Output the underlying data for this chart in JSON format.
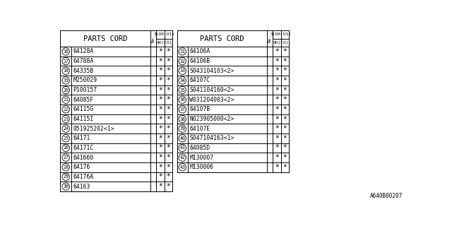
{
  "footer": "A640B00207",
  "bg_color": "#ffffff",
  "left_table": {
    "header": "PARTS CORD",
    "rows": [
      {
        "num": "16",
        "part": "64128A"
      },
      {
        "num": "17",
        "part": "64788A"
      },
      {
        "num": "18",
        "part": "64335B"
      },
      {
        "num": "19",
        "part": "M250029"
      },
      {
        "num": "20",
        "part": "P100157"
      },
      {
        "num": "21",
        "part": "64085F"
      },
      {
        "num": "22",
        "part": "64115G"
      },
      {
        "num": "23",
        "part": "64115I"
      },
      {
        "num": "24",
        "part": "051925202<1>"
      },
      {
        "num": "25",
        "part": "64171"
      },
      {
        "num": "26",
        "part": "64171C"
      },
      {
        "num": "27",
        "part": "641660"
      },
      {
        "num": "28",
        "part": "64176"
      },
      {
        "num": "29",
        "part": "64176A"
      },
      {
        "num": "30",
        "part": "64163"
      }
    ]
  },
  "right_table": {
    "header": "PARTS CORD",
    "rows": [
      {
        "num": "31",
        "part": "64106A"
      },
      {
        "num": "32",
        "part": "64106B"
      },
      {
        "num": "33",
        "part": "S043104103<2>"
      },
      {
        "num": "34",
        "part": "64107C"
      },
      {
        "num": "35",
        "part": "S041104160<2>"
      },
      {
        "num": "36",
        "part": "W031204003<2>"
      },
      {
        "num": "37",
        "part": "64107B"
      },
      {
        "num": "38",
        "part": "N023905000<2>"
      },
      {
        "num": "39",
        "part": "64107E"
      },
      {
        "num": "40",
        "part": "S047104163<1>"
      },
      {
        "num": "41",
        "part": "64085D"
      },
      {
        "num": "42",
        "part": "M130007"
      },
      {
        "num": "43",
        "part": "M130006"
      }
    ]
  }
}
